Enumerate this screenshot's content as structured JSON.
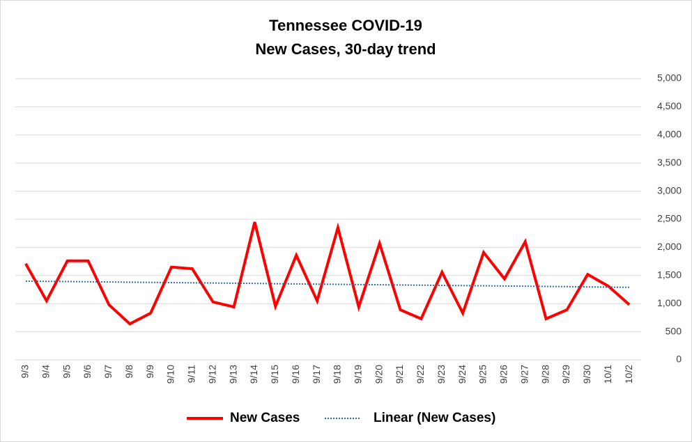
{
  "chart_data": {
    "type": "line",
    "title": "Tennessee COVID-19",
    "subtitle": "New Cases, 30-day trend",
    "categories": [
      "9/3",
      "9/4",
      "9/5",
      "9/6",
      "9/7",
      "9/8",
      "9/9",
      "9/10",
      "9/11",
      "9/12",
      "9/13",
      "9/14",
      "9/15",
      "9/16",
      "9/17",
      "9/18",
      "9/19",
      "9/20",
      "9/21",
      "9/22",
      "9/23",
      "9/24",
      "9/25",
      "9/26",
      "9/27",
      "9/28",
      "9/29",
      "9/30",
      "10/1",
      "10/2"
    ],
    "series": [
      {
        "name": "New Cases",
        "color": "#ff0000",
        "style": "solid",
        "values": [
          1710,
          1050,
          1760,
          1760,
          980,
          640,
          830,
          1650,
          1620,
          1030,
          940,
          2450,
          950,
          1860,
          1050,
          2350,
          940,
          2070,
          890,
          730,
          1560,
          830,
          1910,
          1440,
          2100,
          730,
          890,
          1520,
          1310,
          980
        ]
      },
      {
        "name": "Linear (New Cases)",
        "color": "#2e6b9e",
        "style": "dotted",
        "values": [
          1400,
          1396.2,
          1392.4,
          1388.6,
          1384.8,
          1381.0,
          1377.2,
          1373.4,
          1369.7,
          1365.9,
          1362.1,
          1358.3,
          1354.5,
          1350.7,
          1346.9,
          1343.1,
          1339.3,
          1335.5,
          1331.7,
          1327.9,
          1324.1,
          1320.3,
          1316.6,
          1312.8,
          1309.0,
          1305.2,
          1301.4,
          1297.6,
          1293.8,
          1290.0
        ]
      }
    ],
    "ylim": [
      0,
      5000
    ],
    "yticks": [
      0,
      500,
      {
        "value": 1000,
        "label": "1,000"
      },
      {
        "value": 1500,
        "label": "1,500"
      },
      {
        "value": 2000,
        "label": "2,000"
      },
      {
        "value": 2500,
        "label": "2,500"
      },
      {
        "value": 3000,
        "label": "3,000"
      },
      {
        "value": 3500,
        "label": "3,500"
      },
      {
        "value": 4000,
        "label": "4,000"
      },
      {
        "value": 4500,
        "label": "4,500"
      },
      {
        "value": 5000,
        "label": "5,000"
      }
    ],
    "y_axis_side": "right",
    "grid": true,
    "legend": "bottom"
  }
}
